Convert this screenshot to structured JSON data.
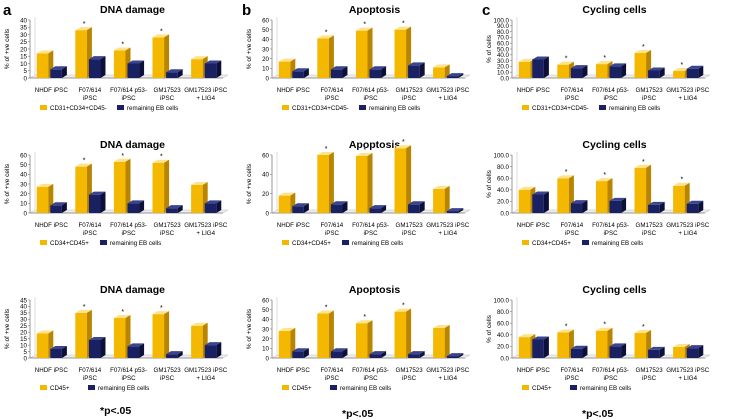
{
  "figure": {
    "footnote": "*p<.05",
    "panel_labels": [
      "a",
      "b",
      "c"
    ],
    "colors": {
      "gold": "#f5b800",
      "gold_light": "#ffe38a",
      "gold_dark": "#b98500",
      "navy": "#1a2163",
      "navy_light": "#3a4590",
      "navy_dark": "#0b0f3a",
      "axis": "#7f7f7f"
    }
  },
  "chart_data": [
    {
      "id": "a1",
      "type": "bar",
      "title": "DNA damage",
      "ylabel": "% of +ve cells",
      "ylim": [
        0,
        40
      ],
      "yticks": [
        0,
        5,
        10,
        15,
        20,
        25,
        30,
        35,
        40
      ],
      "categories": [
        "NHDF iPSC",
        "F07/614 iPSC",
        "F07/614 p53- iPSC",
        "GM17523 iPSC",
        "GM17523 iPSC + LIG4"
      ],
      "series": [
        {
          "name": "CD31+CD34+CD45-",
          "values": [
            17,
            33,
            19,
            28,
            13
          ]
        },
        {
          "name": "remaining EB cells",
          "values": [
            6,
            13,
            10,
            4,
            10
          ]
        }
      ],
      "significant": [
        1,
        2,
        3
      ]
    },
    {
      "id": "b1",
      "type": "bar",
      "title": "Apoptosis",
      "ylabel": "% of +ve cells",
      "ylim": [
        0,
        60
      ],
      "yticks": [
        0,
        10,
        20,
        30,
        40,
        50,
        60
      ],
      "categories": [
        "NHDF iPSC",
        "F07/614 iPSC",
        "F07/614 p53- iPSC",
        "GM17523 iPSC",
        "GM17523 iPSC + LIG4"
      ],
      "series": [
        {
          "name": "CD31+CD34+CD45-",
          "values": [
            17,
            41,
            49,
            50,
            11
          ]
        },
        {
          "name": "remaining EB cells",
          "values": [
            7,
            9,
            9,
            13,
            2
          ]
        }
      ],
      "significant": [
        1,
        2,
        3
      ]
    },
    {
      "id": "c1",
      "type": "bar",
      "title": "Cycling cells",
      "ylabel": "% of cells",
      "ylim": [
        0,
        100
      ],
      "yticks": [
        0,
        10,
        20,
        30,
        40,
        50,
        60,
        70,
        80,
        90,
        100
      ],
      "categories": [
        "NHDF iPSC",
        "F07/614 iPSC",
        "F07/614 p53- iPSC",
        "GM17523 iPSC",
        "GM17523 iPSC + LIG4"
      ],
      "series": [
        {
          "name": "CD31+CD34+CD45-",
          "values": [
            28,
            23,
            24,
            43,
            12
          ]
        },
        {
          "name": "remaining EB cells",
          "values": [
            32,
            17,
            20,
            13,
            16
          ]
        }
      ],
      "significant": [
        1,
        2,
        3,
        4
      ]
    },
    {
      "id": "a2",
      "type": "bar",
      "title": "DNA damage",
      "ylabel": "% of +ve cells",
      "ylim": [
        0,
        60
      ],
      "yticks": [
        0,
        10,
        20,
        30,
        40,
        50,
        60
      ],
      "categories": [
        "NHDF iPSC",
        "F07/614 iPSC",
        "F07/614 p53- iPSC",
        "GM17523 iPSC",
        "GM17523 iPSC + LIG4"
      ],
      "series": [
        {
          "name": "CD34+CD45+",
          "values": [
            27,
            48,
            53,
            52,
            29
          ]
        },
        {
          "name": "remaining EB cells",
          "values": [
            8,
            19,
            10,
            5,
            10
          ]
        }
      ],
      "significant": [
        1,
        2,
        3
      ]
    },
    {
      "id": "b2",
      "type": "bar",
      "title": "Apoptosis",
      "ylabel": "% of +ve cells",
      "ylim": [
        0,
        60
      ],
      "yticks": [
        0,
        20,
        40,
        60
      ],
      "categories": [
        "NHDF iPSC",
        "F07/614 iPSC",
        "F07/614 p53- iPSC",
        "GM17523 iPSC",
        "GM17523 iPSC + LIG4"
      ],
      "series": [
        {
          "name": "CD34+CD45+",
          "values": [
            18,
            60,
            59,
            67,
            25
          ]
        },
        {
          "name": "remaining EB cells",
          "values": [
            7,
            9,
            5,
            9,
            2
          ]
        }
      ],
      "significant": [
        1,
        2,
        3
      ]
    },
    {
      "id": "c2",
      "type": "bar",
      "title": "Cycling cells",
      "ylabel": "% of cells",
      "ylim": [
        0,
        100
      ],
      "yticks": [
        0,
        20,
        40,
        60,
        80,
        100
      ],
      "categories": [
        "NHDF iPSC",
        "F07/614 iPSC",
        "F07/614 p53- iPSC",
        "GM17523 iPSC",
        "GM17523 iPSC + LIG4"
      ],
      "series": [
        {
          "name": "CD34+CD45+",
          "values": [
            40,
            60,
            55,
            78,
            47
          ]
        },
        {
          "name": "remaining EB cells",
          "values": [
            32,
            17,
            21,
            14,
            16
          ]
        }
      ],
      "significant": [
        1,
        2,
        3,
        4
      ]
    },
    {
      "id": "a3",
      "type": "bar",
      "title": "DNA damage",
      "ylabel": "% of +ve cells",
      "ylim": [
        0,
        45
      ],
      "yticks": [
        0,
        5,
        10,
        15,
        20,
        25,
        30,
        35,
        40,
        45
      ],
      "categories": [
        "NHDF iPSC",
        "F07/614 iPSC",
        "F07/614 p53- iPSC",
        "GM17523 iPSC",
        "GM17523 iPSC + LIG4"
      ],
      "series": [
        {
          "name": "CD45+",
          "values": [
            19,
            35,
            31,
            34,
            25
          ]
        },
        {
          "name": "remaining EB cells",
          "values": [
            7,
            14,
            9,
            3,
            10
          ]
        }
      ],
      "significant": [
        1,
        2,
        3
      ]
    },
    {
      "id": "b3",
      "type": "bar",
      "title": "Apoptosis",
      "ylabel": "% of +ve cells",
      "ylim": [
        0,
        60
      ],
      "yticks": [
        0,
        10,
        20,
        30,
        40,
        50,
        60
      ],
      "categories": [
        "NHDF iPSC",
        "F07/614 iPSC",
        "F07/614 p53- iPSC",
        "GM17523 iPSC",
        "GM17523 iPSC + LIG4"
      ],
      "series": [
        {
          "name": "CD45+",
          "values": [
            28,
            46,
            36,
            48,
            31
          ]
        },
        {
          "name": "remaining EB cells",
          "values": [
            7,
            7,
            4,
            4,
            2
          ]
        }
      ],
      "significant": [
        1,
        2,
        3
      ]
    },
    {
      "id": "c3",
      "type": "bar",
      "title": "Cycling cells",
      "ylabel": "% of cells",
      "ylim": [
        0,
        100
      ],
      "yticks": [
        0,
        20,
        40,
        60,
        80,
        100
      ],
      "categories": [
        "NHDF iPSC",
        "F07/614 iPSC",
        "F07/614 p53- iPSC",
        "GM17523 iPSC",
        "GM17523 iPSC + LIG4"
      ],
      "series": [
        {
          "name": "CD45+",
          "values": [
            36,
            44,
            47,
            43,
            19
          ]
        },
        {
          "name": "remaining EB cells",
          "values": [
            32,
            16,
            20,
            14,
            17
          ]
        }
      ],
      "significant": [
        1,
        2,
        3
      ]
    }
  ]
}
